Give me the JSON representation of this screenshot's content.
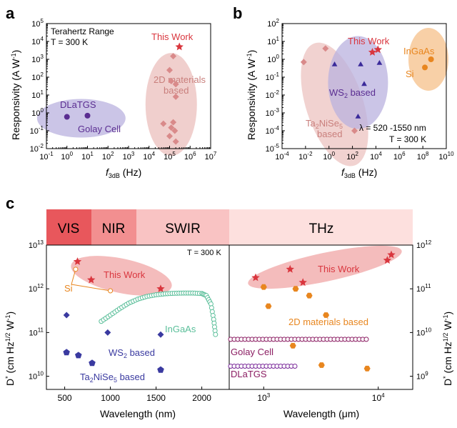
{
  "colors": {
    "purple": "#5a2d91",
    "red": "#d9363e",
    "pink_marker": "#d98a8a",
    "ellipse_red": "#f0a5a5",
    "ellipse_pink": "#edc7c4",
    "ellipse_purple": "#b9b2df",
    "ellipse_orange": "#f7c898",
    "orange": "#e8861f",
    "teal": "#5bbf9a",
    "magenta": "#8b1d62",
    "pink_text": "#c97f7c",
    "band_vis": "#e8575c",
    "band_nir": "#f28f90",
    "band_swir": "#f9c3c3",
    "band_thz": "#fde0de"
  },
  "panels": {
    "a": {
      "label": "a",
      "xlabel_main": "f",
      "xlabel_sub": "3dB",
      "xlabel_unit": " (Hz)",
      "ylabel": "Responsivity (A W",
      "ylabel_sup": "-1",
      "ylabel_end": ")",
      "note1": "Terahertz Range",
      "note2": "T = 300 K",
      "lbl_this": "This Work",
      "lbl_2d1": "2D materials",
      "lbl_2d2": "based",
      "lbl_dla": "DLaTGS",
      "lbl_golay": "Golay Cell"
    },
    "b": {
      "label": "b",
      "xlabel_main": "f",
      "xlabel_sub": "3dB",
      "xlabel_unit": " (Hz)",
      "ylabel": "Responsivity (A W",
      "ylabel_sup": "-1",
      "ylabel_end": ")",
      "lbl_this": "This Work",
      "lbl_ingaas": "InGaAs",
      "lbl_si": "Si",
      "lbl_ws2_pre": "WS",
      "lbl_ws2_sub": "2",
      "lbl_ws2_post": " based",
      "lbl_tn_pre": "Ta",
      "lbl_tn_sub": "2",
      "lbl_tn_mid": "NiSe",
      "lbl_tn_sub2": "5",
      "lbl_tn_post": "based",
      "note1": "λ = 520 -1550 nm",
      "note2": "T = 300 K"
    },
    "c": {
      "label": "c",
      "bands": [
        "VIS",
        "NIR",
        "SWIR",
        "THz"
      ],
      "ylabel_l": "D",
      "ylabel_l_sup": "*",
      "ylabel_l_rest": " (cm Hz",
      "ylabel_l_sup2": "1/2",
      "ylabel_l_rest2": " W",
      "ylabel_l_sup3": "-1",
      "ylabel_l_end": ")",
      "xlabel_l": "Wavelength (nm)",
      "xlabel_r": "Wavelength (μm)",
      "note": "T = 300 K",
      "lbl_this_l": "This Work",
      "lbl_si": "Si",
      "lbl_ingaas": "InGaAs",
      "lbl_ws2_pre": "WS",
      "lbl_ws2_sub": "2",
      "lbl_ws2_post": " based",
      "lbl_tn_pre": "Ta",
      "lbl_tn_sub": "2",
      "lbl_tn_mid": "NiSe",
      "lbl_tn_sub2": "5",
      "lbl_tn_post": " based",
      "lbl_this_r": "This Work",
      "lbl_2d": "2D materials based",
      "lbl_golay": "Golay Cell",
      "lbl_dla": "DLaTGS"
    }
  },
  "chart_data": [
    {
      "panel": "a",
      "type": "scatter",
      "xlabel": "f3dB (Hz)",
      "ylabel": "Responsivity (A W-1)",
      "title": "",
      "x_scale": "log",
      "y_scale": "log",
      "xlim": [
        0.1,
        10000000
      ],
      "ylim": [
        0.01,
        100000
      ],
      "x_ticks": [
        "10-1",
        "100",
        "101",
        "102",
        "103",
        "104",
        "105",
        "106",
        "107"
      ],
      "y_ticks": [
        "10-2",
        "10-1",
        "100",
        "101",
        "102",
        "103",
        "104",
        "105"
      ],
      "series": [
        {
          "name": "This Work",
          "marker": "star",
          "points": [
            [
              300000,
              5000
            ]
          ]
        },
        {
          "name": "2D materials based",
          "marker": "diamond",
          "points": [
            [
              150000,
              1500
            ],
            [
              100000,
              250
            ],
            [
              120000,
              60
            ],
            [
              200000,
              40
            ],
            [
              200000,
              8
            ],
            [
              50000,
              0.25
            ],
            [
              150000,
              0.3
            ],
            [
              120000,
              0.15
            ],
            [
              180000,
              0.1
            ],
            [
              100000,
              0.05
            ],
            [
              200000,
              0.025
            ]
          ]
        },
        {
          "name": "DLaTGS",
          "marker": "circle",
          "points": [
            [
              1,
              0.6
            ]
          ]
        },
        {
          "name": "Golay Cell",
          "marker": "circle",
          "points": [
            [
              10,
              0.7
            ]
          ]
        }
      ]
    },
    {
      "panel": "b",
      "type": "scatter",
      "xlabel": "f3dB (Hz)",
      "ylabel": "Responsivity (A W-1)",
      "title": "",
      "x_scale": "log",
      "y_scale": "log",
      "xlim": [
        0.0001,
        10000000000
      ],
      "ylim": [
        1e-05,
        100
      ],
      "x_ticks": [
        "10-4",
        "10-2",
        "100",
        "102",
        "104",
        "106",
        "108",
        "1010"
      ],
      "y_ticks": [
        "10-5",
        "10-4",
        "10-3",
        "10-2",
        "10-1",
        "100",
        "101",
        "102"
      ],
      "series": [
        {
          "name": "This Work",
          "marker": "star",
          "points": [
            [
              5000,
              2.5
            ],
            [
              15000,
              3.5
            ]
          ]
        },
        {
          "name": "InGaAs",
          "marker": "circle",
          "points": [
            [
              500000000,
              1
            ]
          ]
        },
        {
          "name": "Si",
          "marker": "circle",
          "points": [
            [
              150000000,
              0.35
            ]
          ]
        },
        {
          "name": "WS2 based",
          "marker": "triangle",
          "points": [
            [
              3,
              0.5
            ],
            [
              500,
              0.5
            ],
            [
              20000,
              0.6
            ],
            [
              1000,
              0.04
            ],
            [
              300,
              0.0006
            ]
          ]
        },
        {
          "name": "Ta2NiSe5 based",
          "marker": "diamond",
          "points": [
            [
              0.007,
              0.7
            ],
            [
              0.5,
              4
            ],
            [
              150,
              0.0001
            ]
          ]
        }
      ]
    },
    {
      "panel": "c-left",
      "type": "scatter",
      "xlabel": "Wavelength (nm)",
      "ylabel": "D* (cm Hz1/2 W-1)",
      "title": "",
      "y_scale": "log",
      "xlim": [
        300,
        2300
      ],
      "ylim": [
        5000000000,
        10000000000000
      ],
      "x_ticks": [
        "500",
        "1000",
        "1500",
        "2000"
      ],
      "y_ticks": [
        "1010",
        "1011",
        "1012",
        "1013"
      ],
      "series": [
        {
          "name": "This Work",
          "marker": "star",
          "points": [
            [
              640,
              4200000000000
            ],
            [
              790,
              1600000000000
            ],
            [
              1550,
              1000000000000
            ]
          ]
        },
        {
          "name": "Si",
          "marker": "open-circle",
          "points": [
            [
              620,
              2800000000000
            ],
            [
              1000,
              900000000000
            ]
          ]
        },
        {
          "name": "InGaAs",
          "marker": "open-circle-curve",
          "points": [
            [
              900,
              180000000000
            ],
            [
              1000,
              250000000000
            ],
            [
              1100,
              350000000000
            ],
            [
              1200,
              470000000000
            ],
            [
              1300,
              580000000000
            ],
            [
              1400,
              670000000000
            ],
            [
              1500,
              730000000000
            ],
            [
              1600,
              770000000000
            ],
            [
              1700,
              790000000000
            ],
            [
              1800,
              800000000000
            ],
            [
              1900,
              800000000000
            ],
            [
              2000,
              780000000000
            ],
            [
              2050,
              700000000000
            ],
            [
              2100,
              450000000000
            ],
            [
              2130,
              200000000000
            ],
            [
              2150,
              90000000000
            ]
          ]
        },
        {
          "name": "WS2 based",
          "marker": "diamond",
          "points": [
            [
              520,
              250000000000
            ],
            [
              970,
              100000000000
            ],
            [
              1550,
              90000000000
            ]
          ]
        },
        {
          "name": "Ta2NiSe5 based",
          "marker": "pentagon",
          "points": [
            [
              520,
              35000000000
            ],
            [
              650,
              30000000000
            ],
            [
              800,
              20000000000
            ],
            [
              1550,
              14000000000
            ]
          ]
        }
      ]
    },
    {
      "panel": "c-right",
      "type": "scatter",
      "xlabel": "Wavelength (μm)",
      "ylabel": "D* (cm Hz1/2 W-1)",
      "title": "",
      "x_scale": "log",
      "y_scale": "log",
      "xlim": [
        500,
        20000
      ],
      "ylim": [
        500000000,
        1000000000000
      ],
      "x_ticks": [
        "103",
        "104"
      ],
      "y_ticks": [
        "109",
        "1010",
        "1011",
        "1012"
      ],
      "series": [
        {
          "name": "This Work",
          "marker": "star",
          "points": [
            [
              850,
              180000000000
            ],
            [
              1700,
              280000000000
            ],
            [
              2200,
              140000000000
            ],
            [
              12000,
              450000000000
            ],
            [
              13000,
              600000000000
            ]
          ]
        },
        {
          "name": "2D materials based",
          "marker": "hexagon",
          "points": [
            [
              1000,
              110000000000
            ],
            [
              1100,
              40000000000
            ],
            [
              1900,
              100000000000
            ],
            [
              2500,
              70000000000
            ],
            [
              3500,
              25000000000
            ],
            [
              1800,
              5000000000
            ],
            [
              3200,
              1800000000
            ],
            [
              8000,
              1500000000
            ]
          ]
        },
        {
          "name": "Golay Cell",
          "marker": "open-circle-line",
          "points": [
            [
              500,
              7000000000
            ],
            [
              8000,
              7000000000
            ]
          ]
        },
        {
          "name": "DLaTGS",
          "marker": "open-circle-line",
          "points": [
            [
              500,
              1700000000
            ],
            [
              2000,
              1700000000
            ]
          ]
        }
      ]
    }
  ]
}
